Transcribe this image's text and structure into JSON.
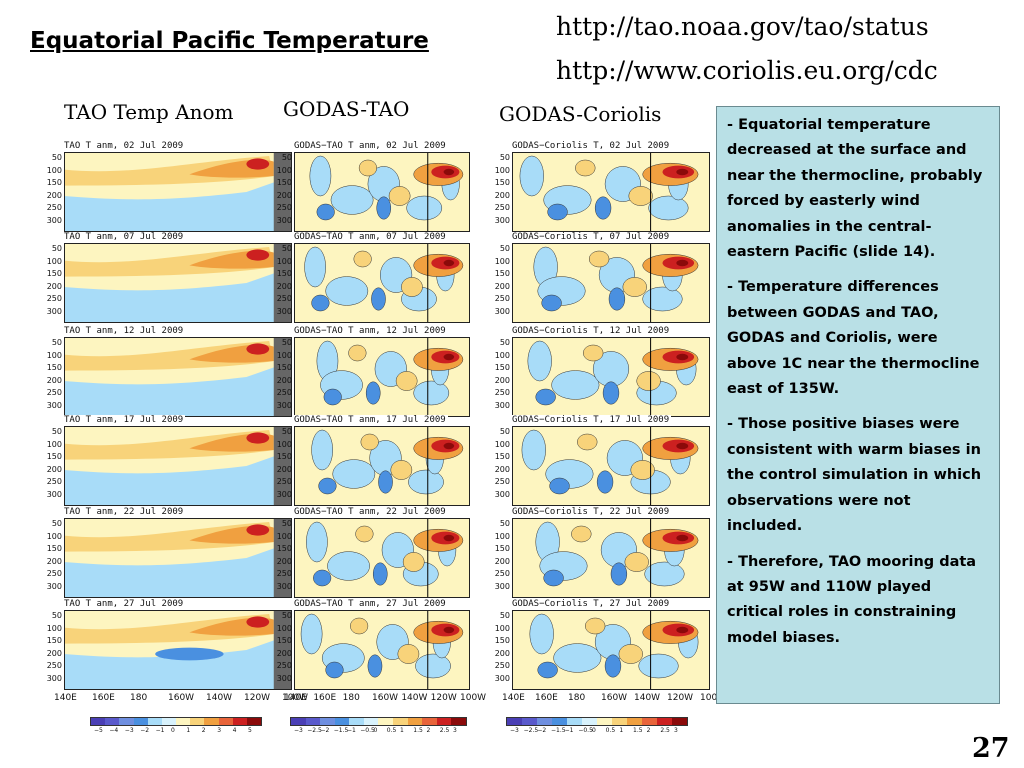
{
  "slide": {
    "title": "Equatorial Pacific Temperature",
    "urls": [
      "http://tao.noaa.gov/tao/status",
      "http://www.coriolis.eu.org/cdc"
    ],
    "page_number": "27"
  },
  "columns": [
    {
      "heading": "TAO Temp Anom",
      "panel_prefix": "TAO  T  anm,"
    },
    {
      "heading": "GODAS-TAO",
      "panel_prefix": "GODAS−TAO  T  anm,"
    },
    {
      "heading": "GODAS-Coriolis",
      "panel_prefix": "GODAS−Coriolis  T,"
    }
  ],
  "dates": [
    "02  Jul  2009",
    "07  Jul  2009",
    "12  Jul  2009",
    "17  Jul  2009",
    "22  Jul  2009",
    "27  Jul  2009"
  ],
  "y_ticks": [
    "50",
    "100",
    "150",
    "200",
    "250",
    "300"
  ],
  "x_ticks": [
    "140E",
    "160E",
    "180",
    "160W",
    "140W",
    "120W",
    "100W"
  ],
  "colorbars": [
    {
      "labels": [
        "−5",
        "−4",
        "−3",
        "−2",
        "−1",
        "0",
        "1",
        "2",
        "3",
        "4",
        "5"
      ]
    },
    {
      "labels": [
        "−3",
        "−2.5",
        "−2",
        "−1.5",
        "−1",
        "−0.5",
        "0",
        "0.5",
        "1",
        "1.5",
        "2",
        "2.5",
        "3"
      ]
    },
    {
      "labels": [
        "−3",
        "−2.5",
        "−2",
        "−1.5",
        "−1",
        "−0.5",
        "0",
        "0.5",
        "1",
        "1.5",
        "2",
        "2.5",
        "3"
      ]
    }
  ],
  "colors": {
    "deep_blue": "#4a3fb5",
    "blue": "#4a90e0",
    "light_blue": "#a8dcf8",
    "pale_blue": "#d8f2fc",
    "pale_yellow": "#fdf5c0",
    "yellow_orange": "#f8d37a",
    "orange": "#f0a040",
    "red_orange": "#e8643a",
    "red": "#cc2020",
    "dark_red": "#8b0a0a"
  },
  "bullets": [
    "Equatorial temperature decreased at the surface and near the thermocline, probably forced by easterly wind anomalies in the central-eastern Pacific (slide 14).",
    "Temperature differences between GODAS and TAO, GODAS and Coriolis, were above 1C near the thermocline east of 135W.",
    "Those positive biases were consistent with warm biases in the control simulation in which observations were not included.",
    "Therefore, TAO mooring data at 95W and 110W played critical roles in constraining model biases."
  ]
}
